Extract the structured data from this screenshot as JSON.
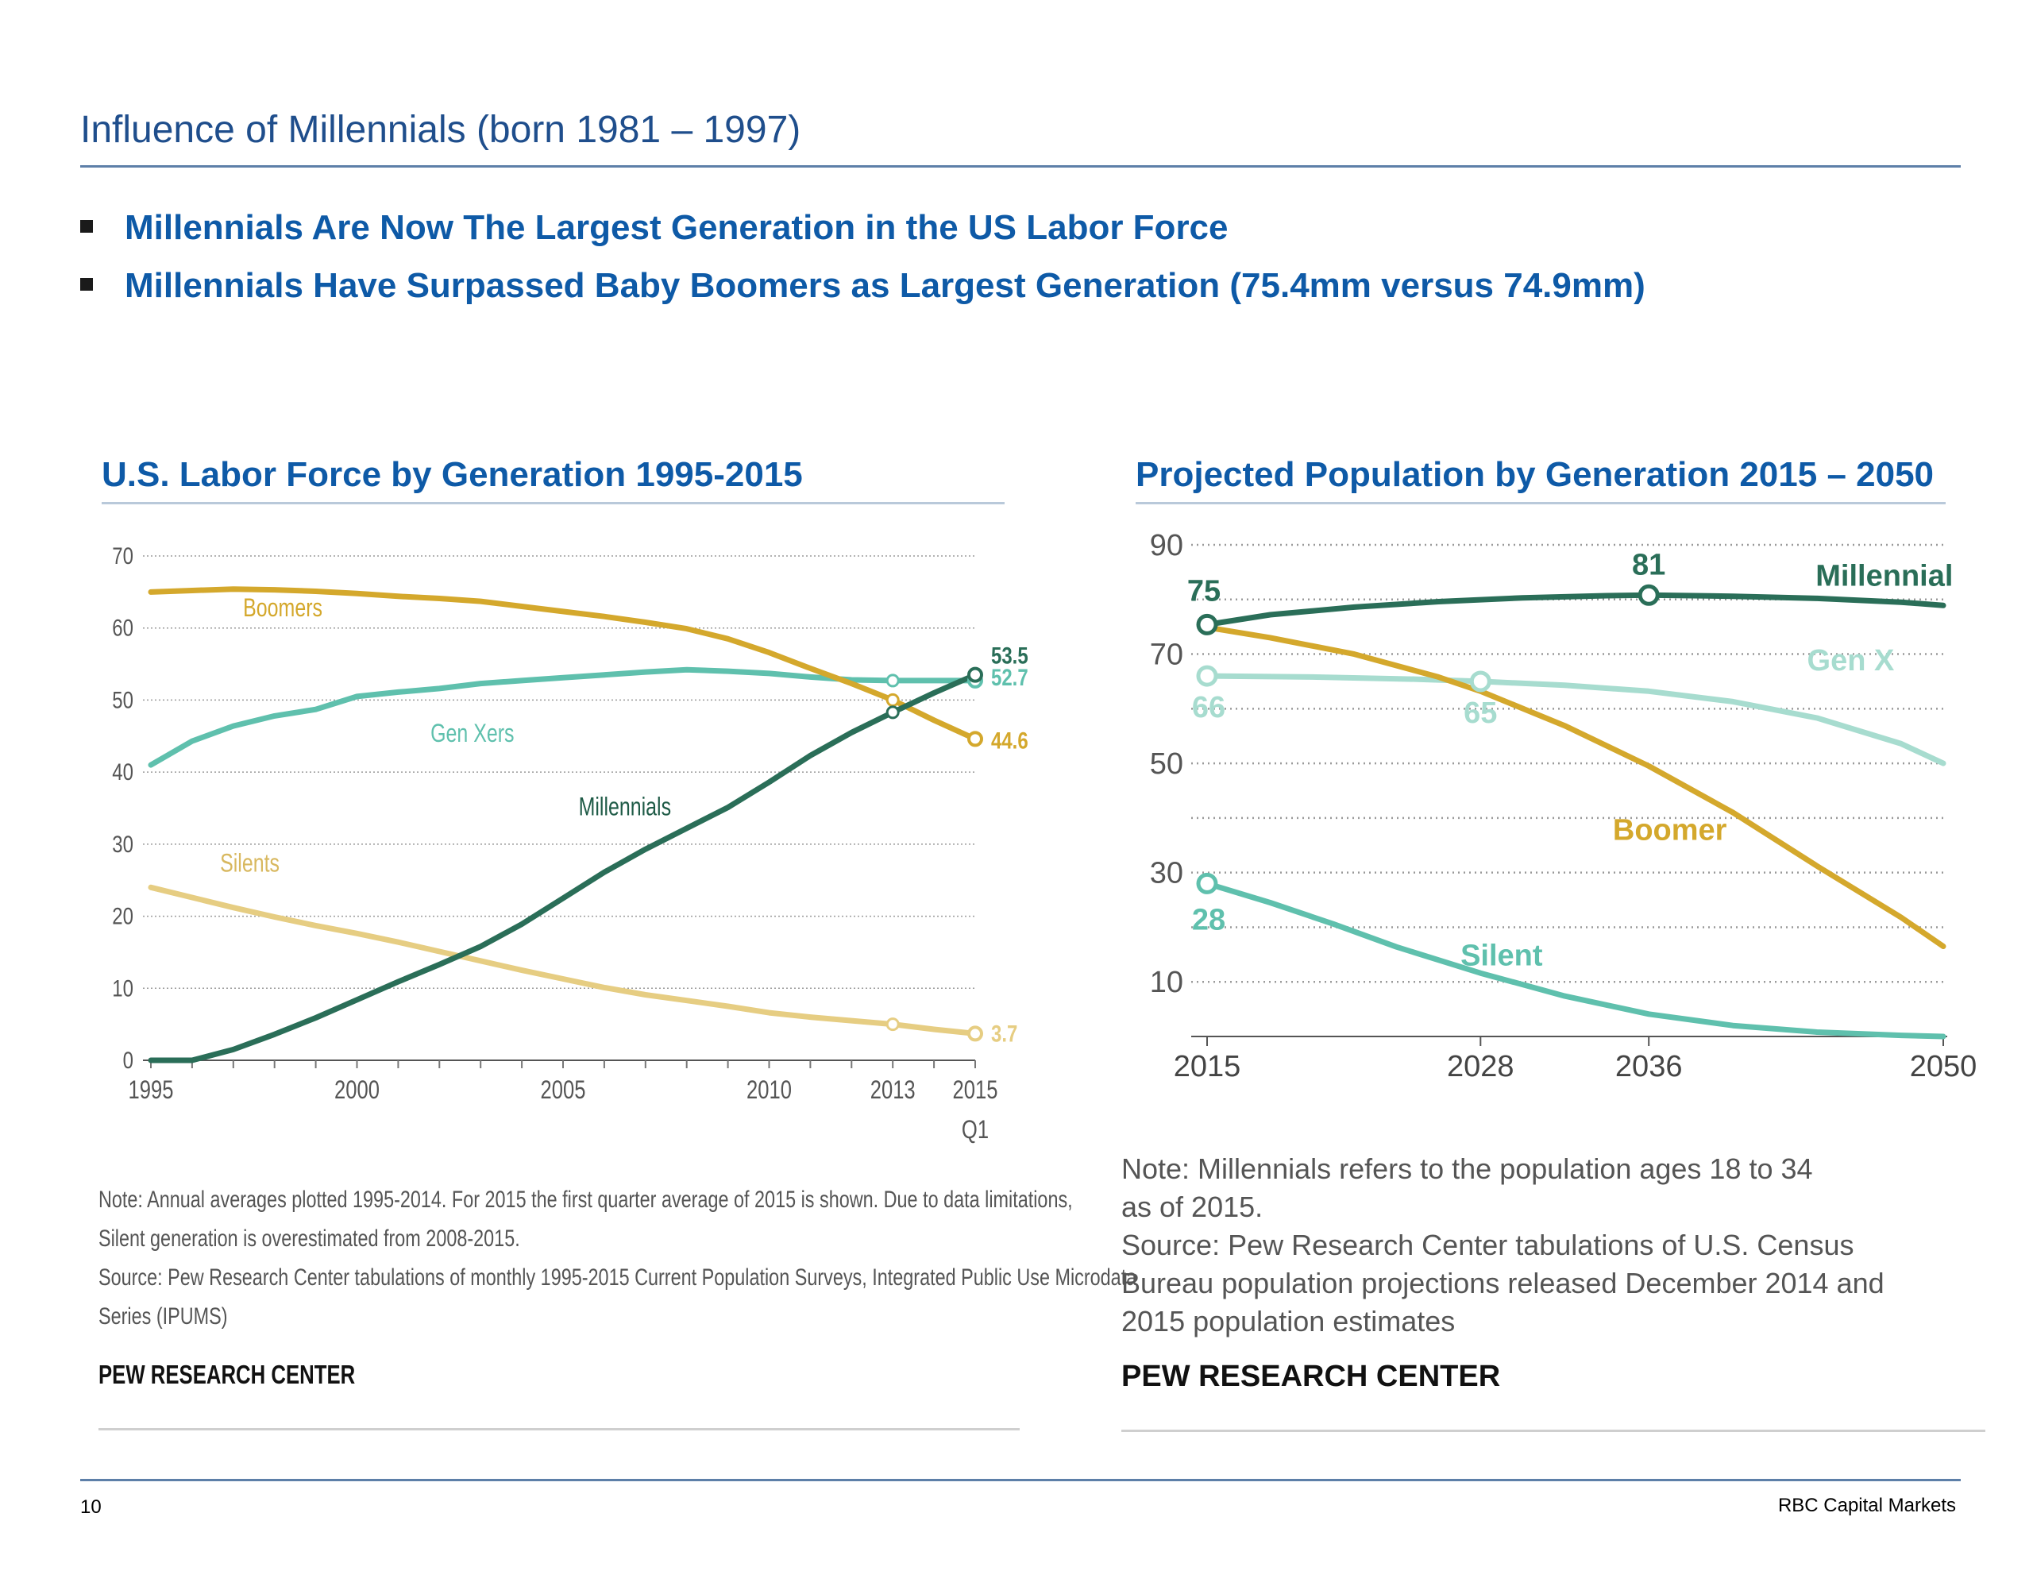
{
  "page": {
    "title": "Influence of Millennials (born 1981 – 1997)",
    "bullets": [
      "Millennials Are Now The Largest Generation in the US Labor Force",
      "Millennials Have Surpassed Baby Boomers as Largest Generation (75.4mm versus 74.9mm)"
    ],
    "page_number": "10",
    "footer_brand": "RBC Capital Markets",
    "colors": {
      "title": "#1f4e8c",
      "bullet_text": "#0e5aa7",
      "boomers": "#d4a82c",
      "gen_x": "#5fc0ad",
      "millennials": "#2a6e58",
      "silents": "#e6cd82"
    }
  },
  "left_panel": {
    "heading": "U.S. Labor Force by Generation 1995-2015",
    "note_lines": [
      "Note: Annual averages plotted 1995-2014. For 2015 the first quarter average of 2015 is shown. Due to data limitations,",
      "Silent generation is overestimated from 2008-2015.",
      "Source: Pew Research Center tabulations of monthly 1995-2015 Current Population Surveys, Integrated Public Use Microdata",
      "Series (IPUMS)"
    ],
    "brand": "PEW RESEARCH CENTER"
  },
  "right_panel": {
    "heading": "Projected Population by Generation 2015 – 2050",
    "note_lines": [
      "Note: Millennials refers to the population ages 18 to 34",
      "as of 2015.",
      "Source: Pew Research Center tabulations of U.S. Census",
      "Bureau population projections released December 2014 and",
      "2015 population estimates"
    ],
    "brand": "PEW RESEARCH CENTER"
  },
  "chart_data": [
    {
      "type": "line",
      "title": "U.S. Labor Force by Generation 1995-2015",
      "ylim": [
        0,
        70
      ],
      "yticks": [
        0,
        10,
        20,
        30,
        40,
        50,
        60,
        70
      ],
      "xlim": [
        1995,
        2015
      ],
      "xtick_labels": [
        {
          "x": 1995,
          "label": "1995"
        },
        {
          "x": 2000,
          "label": "2000"
        },
        {
          "x": 2005,
          "label": "2005"
        },
        {
          "x": 2010,
          "label": "2010"
        },
        {
          "x": 2013,
          "label": "2013"
        },
        {
          "x": 2015,
          "label": "2015",
          "sublabel": "Q1"
        }
      ],
      "grid": true,
      "series": [
        {
          "name": "Boomers",
          "color": "#d4a82c",
          "x": [
            1995,
            1996,
            1997,
            1998,
            1999,
            2000,
            2001,
            2002,
            2003,
            2004,
            2005,
            2006,
            2007,
            2008,
            2009,
            2010,
            2011,
            2012,
            2013,
            2014,
            2015
          ],
          "values": [
            65.0,
            65.2,
            65.4,
            65.3,
            65.1,
            64.8,
            64.4,
            64.1,
            63.7,
            63.0,
            62.3,
            61.6,
            60.8,
            59.9,
            58.5,
            56.6,
            54.4,
            52.3,
            50.0,
            47.2,
            44.6
          ],
          "end_label": "44.6"
        },
        {
          "name": "Gen Xers",
          "color": "#5fc0ad",
          "x": [
            1995,
            1996,
            1997,
            1998,
            1999,
            2000,
            2001,
            2002,
            2003,
            2004,
            2005,
            2006,
            2007,
            2008,
            2009,
            2010,
            2011,
            2012,
            2013,
            2014,
            2015
          ],
          "values": [
            41.0,
            44.3,
            46.4,
            47.8,
            48.7,
            50.5,
            51.1,
            51.6,
            52.3,
            52.7,
            53.1,
            53.5,
            53.9,
            54.2,
            54.0,
            53.7,
            53.2,
            52.8,
            52.7,
            52.7,
            52.7
          ],
          "end_label": "52.7"
        },
        {
          "name": "Millennials",
          "color": "#2a6e58",
          "x": [
            1995,
            1996,
            1997,
            1998,
            1999,
            2000,
            2001,
            2002,
            2003,
            2004,
            2005,
            2006,
            2007,
            2008,
            2009,
            2010,
            2011,
            2012,
            2013,
            2014,
            2015
          ],
          "values": [
            0.0,
            0.0,
            1.5,
            3.6,
            5.9,
            8.4,
            10.9,
            13.3,
            15.8,
            18.9,
            22.5,
            26.1,
            29.3,
            32.2,
            35.1,
            38.6,
            42.3,
            45.5,
            48.3,
            51.0,
            53.5
          ],
          "end_label": "53.5"
        },
        {
          "name": "Silents",
          "color": "#e6cd82",
          "x": [
            1995,
            1996,
            1997,
            1998,
            1999,
            2000,
            2001,
            2002,
            2003,
            2004,
            2005,
            2006,
            2007,
            2008,
            2009,
            2010,
            2011,
            2012,
            2013,
            2014,
            2015
          ],
          "values": [
            24.0,
            22.6,
            21.2,
            19.9,
            18.7,
            17.6,
            16.4,
            15.1,
            13.8,
            12.5,
            11.3,
            10.1,
            9.1,
            8.3,
            7.5,
            6.6,
            6.0,
            5.5,
            5.0,
            4.3,
            3.7
          ],
          "end_label": "3.7"
        }
      ]
    },
    {
      "type": "line",
      "title": "Projected Population by Generation 2015 – 2050",
      "ylim": [
        0,
        90
      ],
      "yticks": [
        10,
        30,
        50,
        70,
        90
      ],
      "xlim": [
        2015,
        2050
      ],
      "xtick_labels": [
        {
          "x": 2015,
          "label": "2015"
        },
        {
          "x": 2028,
          "label": "2028"
        },
        {
          "x": 2036,
          "label": "2036"
        },
        {
          "x": 2050,
          "label": "2050"
        }
      ],
      "grid": true,
      "series": [
        {
          "name": "Millennial",
          "color": "#2a6e58",
          "x": [
            2015,
            2018,
            2022,
            2026,
            2030,
            2034,
            2036,
            2040,
            2044,
            2048,
            2050
          ],
          "values": [
            75.4,
            77.2,
            78.6,
            79.6,
            80.3,
            80.7,
            80.8,
            80.6,
            80.2,
            79.5,
            78.9
          ],
          "point_labels": [
            {
              "x": 2015,
              "label": "75"
            },
            {
              "x": 2036,
              "label": "81"
            }
          ]
        },
        {
          "name": "Gen X",
          "color": "#a7dccf",
          "x": [
            2015,
            2020,
            2025,
            2028,
            2032,
            2036,
            2040,
            2044,
            2048,
            2050
          ],
          "values": [
            66.0,
            65.8,
            65.4,
            65.0,
            64.3,
            63.2,
            61.3,
            58.3,
            53.6,
            50.0
          ],
          "point_labels": [
            {
              "x": 2015,
              "label": "66"
            },
            {
              "x": 2028,
              "label": "65"
            }
          ]
        },
        {
          "name": "Boomer",
          "color": "#d4a82c",
          "x": [
            2015,
            2018,
            2022,
            2026,
            2028,
            2032,
            2036,
            2040,
            2044,
            2048,
            2050
          ],
          "values": [
            74.9,
            73.0,
            70.0,
            65.8,
            63.2,
            56.9,
            49.5,
            41.0,
            31.2,
            21.8,
            16.5
          ]
        },
        {
          "name": "Silent",
          "color": "#5fc0ad",
          "x": [
            2015,
            2018,
            2021,
            2024,
            2028,
            2032,
            2036,
            2040,
            2044,
            2048,
            2050
          ],
          "values": [
            28.0,
            24.5,
            20.6,
            16.4,
            11.6,
            7.4,
            4.1,
            2.0,
            0.8,
            0.2,
            0.0
          ],
          "point_labels": [
            {
              "x": 2015,
              "label": "28"
            }
          ]
        }
      ]
    }
  ]
}
